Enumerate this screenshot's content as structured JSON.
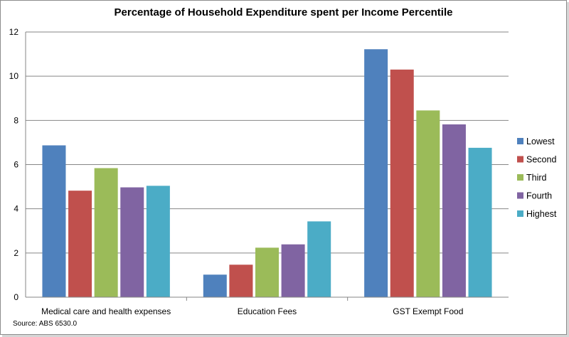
{
  "chart_data": {
    "type": "bar",
    "title": "Percentage of Household Expenditure spent per Income Percentile",
    "categories": [
      "Medical care and health expenses",
      "Education Fees",
      "GST Exempt Food"
    ],
    "series": [
      {
        "name": "Lowest",
        "color": "#4f81bd",
        "values": [
          6.87,
          1.02,
          11.22
        ]
      },
      {
        "name": "Second",
        "color": "#c0504d",
        "values": [
          4.82,
          1.47,
          10.3
        ]
      },
      {
        "name": "Third",
        "color": "#9bbb59",
        "values": [
          5.84,
          2.24,
          8.45
        ]
      },
      {
        "name": "Fourth",
        "color": "#8064a2",
        "values": [
          4.97,
          2.39,
          7.82
        ]
      },
      {
        "name": "Highest",
        "color": "#4bacc6",
        "values": [
          5.04,
          3.43,
          6.76
        ]
      }
    ],
    "ylim": [
      0,
      12
    ],
    "yticks": [
      0,
      2,
      4,
      6,
      8,
      10,
      12
    ],
    "xlabel": "",
    "ylabel": "",
    "grid": true,
    "legend_position": "right"
  },
  "source_note": "Source: ABS 6530.0"
}
